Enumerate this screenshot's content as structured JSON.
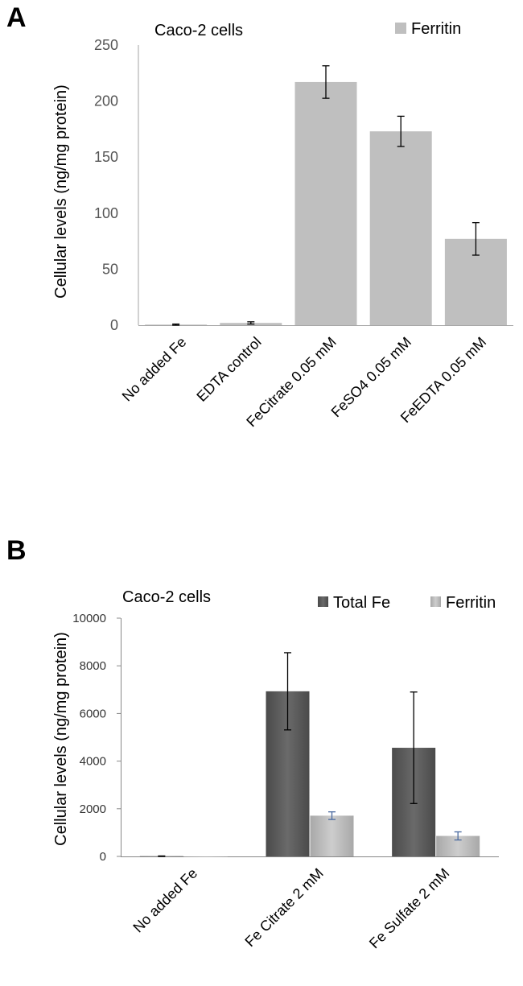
{
  "panel_a": {
    "letter": "A"
  },
  "panel_b": {
    "letter": "B"
  },
  "chart_data": [
    {
      "type": "bar",
      "annotation": "Caco-2 cells",
      "ylabel": "Cellular levels (ng/mg protein)",
      "xlabel": "",
      "categories": [
        "No added Fe",
        "EDTA control",
        "FeCitrate 0.05 mM",
        "FeSO4 0.05 mM",
        "FeEDTA 0.05 mM"
      ],
      "series": [
        {
          "name": "Ferritin",
          "values": [
            0.5,
            2,
            217,
            173,
            77
          ],
          "errors": [
            0.5,
            1,
            14.5,
            13.5,
            14.5
          ],
          "color": "#bfbfbf"
        }
      ],
      "ylim": [
        0,
        250
      ],
      "yticks": [
        0,
        50,
        100,
        150,
        200,
        250
      ],
      "legend_position": "top-right",
      "grid": false
    },
    {
      "type": "bar",
      "annotation": "Caco-2 cells",
      "ylabel": "Cellular levels (ng/mg protein)",
      "xlabel": "",
      "categories": [
        "No added Fe",
        "Fe Citrate 2 mM",
        "Fe Sulfate 2 mM"
      ],
      "series": [
        {
          "name": "Total Fe",
          "values": [
            10,
            6930,
            4560
          ],
          "errors": [
            10,
            1620,
            2340
          ],
          "color": "#5b5b5b"
        },
        {
          "name": "Ferritin",
          "values": [
            0,
            1710,
            860
          ],
          "errors": [
            0,
            160,
            170
          ],
          "color": "#b5b5b5"
        }
      ],
      "ylim": [
        0,
        10000
      ],
      "yticks": [
        0,
        2000,
        4000,
        6000,
        8000,
        10000
      ],
      "legend_position": "top-right",
      "grid": false
    }
  ]
}
